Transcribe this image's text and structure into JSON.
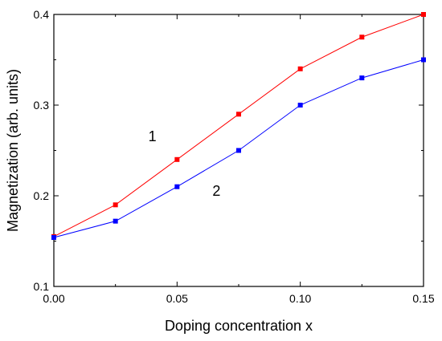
{
  "chart_data": {
    "type": "line",
    "title": "",
    "xlabel": "Doping concentration x",
    "ylabel": "Magnetization (arb. units)",
    "xlim": [
      0.0,
      0.15
    ],
    "ylim": [
      0.1,
      0.4
    ],
    "x_ticks": [
      "0.00",
      "0.05",
      "0.10",
      "0.15"
    ],
    "y_ticks": [
      "0.1",
      "0.2",
      "0.3",
      "0.4"
    ],
    "grid": false,
    "legend": "none",
    "x": [
      0.0,
      0.025,
      0.05,
      0.075,
      0.1,
      0.125,
      0.15
    ],
    "series": [
      {
        "label": "1",
        "color": "#ff0000",
        "marker": "square",
        "values": [
          0.155,
          0.19,
          0.24,
          0.29,
          0.34,
          0.375,
          0.4
        ],
        "label_at": [
          0.04,
          0.26
        ]
      },
      {
        "label": "2",
        "color": "#0000ff",
        "marker": "square",
        "values": [
          0.154,
          0.172,
          0.21,
          0.25,
          0.3,
          0.33,
          0.35
        ],
        "label_at": [
          0.066,
          0.2
        ]
      }
    ]
  }
}
